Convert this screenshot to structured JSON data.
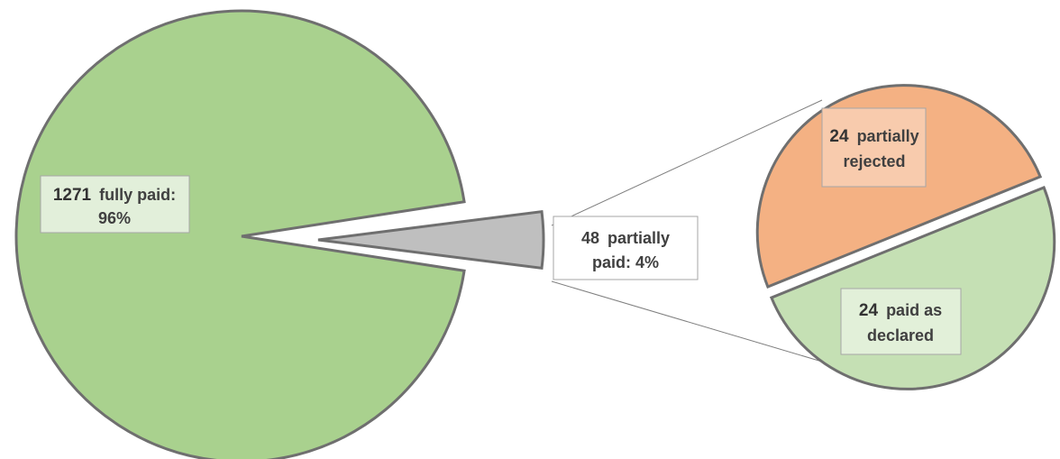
{
  "chart_data": {
    "type": "pie",
    "main_pie": {
      "slices": [
        {
          "count": 1271,
          "label": "fully paid:",
          "percent_label": "96%",
          "value": 96,
          "color": "#a9d18e"
        },
        {
          "count": 48,
          "label": "partially",
          "label_line2": "paid: 4%",
          "value": 4,
          "color": "#bfbfbf"
        }
      ]
    },
    "breakout_pie": {
      "slices": [
        {
          "count": 24,
          "label": "partially",
          "label_line2": "rejected",
          "value": 24,
          "color": "#f4b183",
          "box_color": "#f8cbad"
        },
        {
          "count": 24,
          "label": "paid as",
          "label_line2": "declared",
          "value": 24,
          "color": "#c5e0b4",
          "box_color": "#e2f0d9"
        }
      ]
    },
    "outline_color": "#6f6f6f",
    "main_label_box_color": "#e2efda"
  }
}
